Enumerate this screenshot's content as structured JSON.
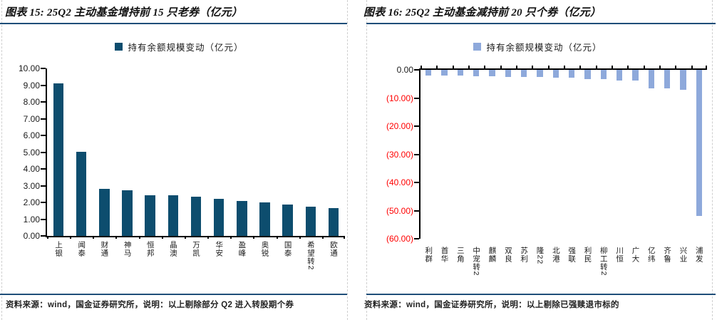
{
  "colors": {
    "rule_blue": "#1F4E79",
    "bar_dark_blue": "#0D4D6E",
    "bar_light_blue": "#8EA9DB",
    "negative_red": "#FF0000",
    "axis_black": "#000000"
  },
  "panels": [
    {
      "title": "图表 15: 25Q2 主动基金增持前 15 只老券（亿元）",
      "legend_label": "持有余额规模变动（亿元）",
      "footer": "资料来源：wind，国金证券研究所，说明：以上剔除部分 Q2 进入转股期个券"
    },
    {
      "title": "图表 16: 25Q2 主动基金减持前 20 只个券（亿元）",
      "legend_label": "持有余额规模变动（亿元）",
      "footer": "资料来源：wind，国金证券研究所，说明：以上剔除已强赎退市标的"
    }
  ],
  "chart_data": [
    {
      "type": "bar",
      "direction": "up",
      "title": "25Q2 主动基金增持前 15 只老券（亿元）",
      "legend": "持有余额规模变动（亿元）",
      "legend_position": "top",
      "categories": [
        "上银",
        "闻泰",
        "财通",
        "神马",
        "恒邦",
        "晶澳",
        "万凯",
        "华安",
        "盈峰",
        "奥锐",
        "国泰",
        "希望转2",
        "欧通"
      ],
      "values": [
        9.12,
        5.02,
        2.8,
        2.73,
        2.44,
        2.43,
        2.36,
        2.22,
        2.08,
        2.02,
        1.88,
        1.73,
        1.67
      ],
      "ylabel": "",
      "ylim": [
        0,
        10
      ],
      "ystep": 1,
      "grid": false,
      "bar_color": "#0D4D6E",
      "negative_parentheses": false,
      "bar_ratio": 0.45
    },
    {
      "type": "bar",
      "direction": "down",
      "title": "25Q2 主动基金减持前 20 只个券（亿元）",
      "legend": "持有余额规模变动（亿元）",
      "legend_position": "top",
      "categories": [
        "利群",
        "首华",
        "三角",
        "中宠转2",
        "麒麟",
        "双良",
        "苏利",
        "隆22",
        "北港",
        "强联",
        "利民",
        "柳工转2",
        "川恒",
        "广大",
        "亿纬",
        "齐鲁",
        "兴业",
        "浦发"
      ],
      "values": [
        -1.9,
        -2.0,
        -2.1,
        -2.2,
        -2.4,
        -2.5,
        -2.6,
        -2.6,
        -2.7,
        -2.9,
        -3.2,
        -3.3,
        -3.8,
        -3.8,
        -6.5,
        -6.6,
        -7.2,
        -51.9
      ],
      "ylabel": "",
      "ylim": [
        0,
        -60
      ],
      "ystep": 10,
      "grid": false,
      "bar_color": "#8EA9DB",
      "negative_parentheses": true,
      "bar_ratio": 0.38
    }
  ]
}
